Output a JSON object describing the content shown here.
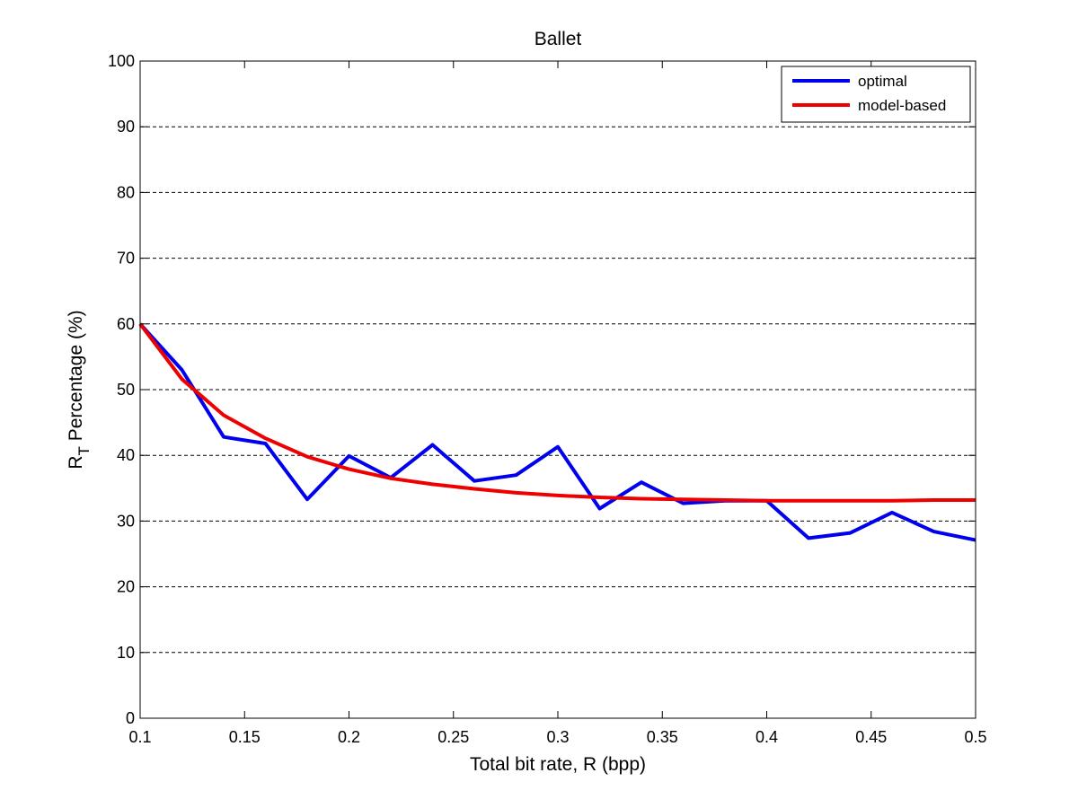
{
  "chart_data": {
    "type": "line",
    "title": "Ballet",
    "xlabel": "Total bit rate, R (bpp)",
    "ylabel_main": "R",
    "ylabel_sub": "T",
    "ylabel_rest": " Percentage (%)",
    "xlim": [
      0.1,
      0.5
    ],
    "ylim": [
      0,
      100
    ],
    "x_ticks": [
      0.1,
      0.15,
      0.2,
      0.25,
      0.3,
      0.35,
      0.4,
      0.45,
      0.5
    ],
    "x_tick_labels": [
      "0.1",
      "0.15",
      "0.2",
      "0.25",
      "0.3",
      "0.35",
      "0.4",
      "0.45",
      "0.5"
    ],
    "y_ticks": [
      0,
      10,
      20,
      30,
      40,
      50,
      60,
      70,
      80,
      90,
      100
    ],
    "y_tick_labels": [
      "0",
      "10",
      "20",
      "30",
      "40",
      "50",
      "60",
      "70",
      "80",
      "90",
      "100"
    ],
    "grid": "horizontal dashed",
    "legend_position": "top-right",
    "series": [
      {
        "name": "optimal",
        "color": "#0000ee",
        "x": [
          0.1,
          0.12,
          0.14,
          0.16,
          0.18,
          0.2,
          0.22,
          0.24,
          0.26,
          0.28,
          0.3,
          0.32,
          0.34,
          0.36,
          0.38,
          0.4,
          0.42,
          0.44,
          0.46,
          0.48,
          0.5
        ],
        "y": [
          60.0,
          53.0,
          42.8,
          41.8,
          33.3,
          39.9,
          36.6,
          41.6,
          36.1,
          37.0,
          41.3,
          31.9,
          35.9,
          32.7,
          33.1,
          33.1,
          27.4,
          28.2,
          31.3,
          28.4,
          27.1
        ]
      },
      {
        "name": "model-based",
        "color": "#ee0000",
        "x": [
          0.1,
          0.12,
          0.14,
          0.16,
          0.18,
          0.2,
          0.22,
          0.24,
          0.26,
          0.28,
          0.3,
          0.32,
          0.34,
          0.36,
          0.38,
          0.4,
          0.42,
          0.44,
          0.46,
          0.48,
          0.5
        ],
        "y": [
          60.0,
          51.6,
          46.1,
          42.6,
          39.8,
          37.9,
          36.5,
          35.6,
          34.9,
          34.3,
          33.9,
          33.6,
          33.4,
          33.3,
          33.2,
          33.1,
          33.1,
          33.1,
          33.1,
          33.2,
          33.2
        ]
      }
    ]
  }
}
